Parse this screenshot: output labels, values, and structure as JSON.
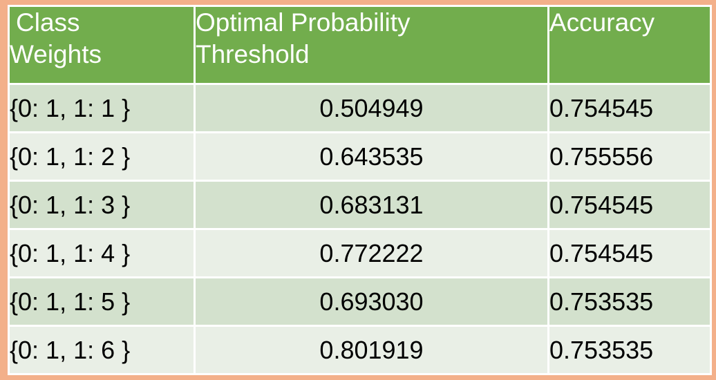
{
  "table": {
    "headers": {
      "class_weights_line1": "Class",
      "class_weights_line2": "Weights",
      "threshold_line1": "Optimal Probability",
      "threshold_line2": "Threshold",
      "accuracy": "Accuracy"
    },
    "rows": [
      {
        "class_weights": "{0: 1,  1: 1 }",
        "threshold": "0.504949",
        "accuracy": "0.754545"
      },
      {
        "class_weights": "{0: 1,  1: 2 }",
        "threshold": "0.643535",
        "accuracy": "0.755556"
      },
      {
        "class_weights": "{0: 1,  1: 3 }",
        "threshold": "0.683131",
        "accuracy": "0.754545"
      },
      {
        "class_weights": "{0: 1,  1: 4 }",
        "threshold": "0.772222",
        "accuracy": "0.754545"
      },
      {
        "class_weights": "{0: 1,  1: 5 }",
        "threshold": "0.693030",
        "accuracy": "0.753535"
      },
      {
        "class_weights": "{0: 1,  1: 6 }",
        "threshold": "0.801919",
        "accuracy": "0.753535"
      }
    ]
  },
  "colors": {
    "background": "#f3b08a",
    "header": "#72ad4d",
    "row_dark": "#d3e1cd",
    "row_light": "#e9efe6"
  }
}
